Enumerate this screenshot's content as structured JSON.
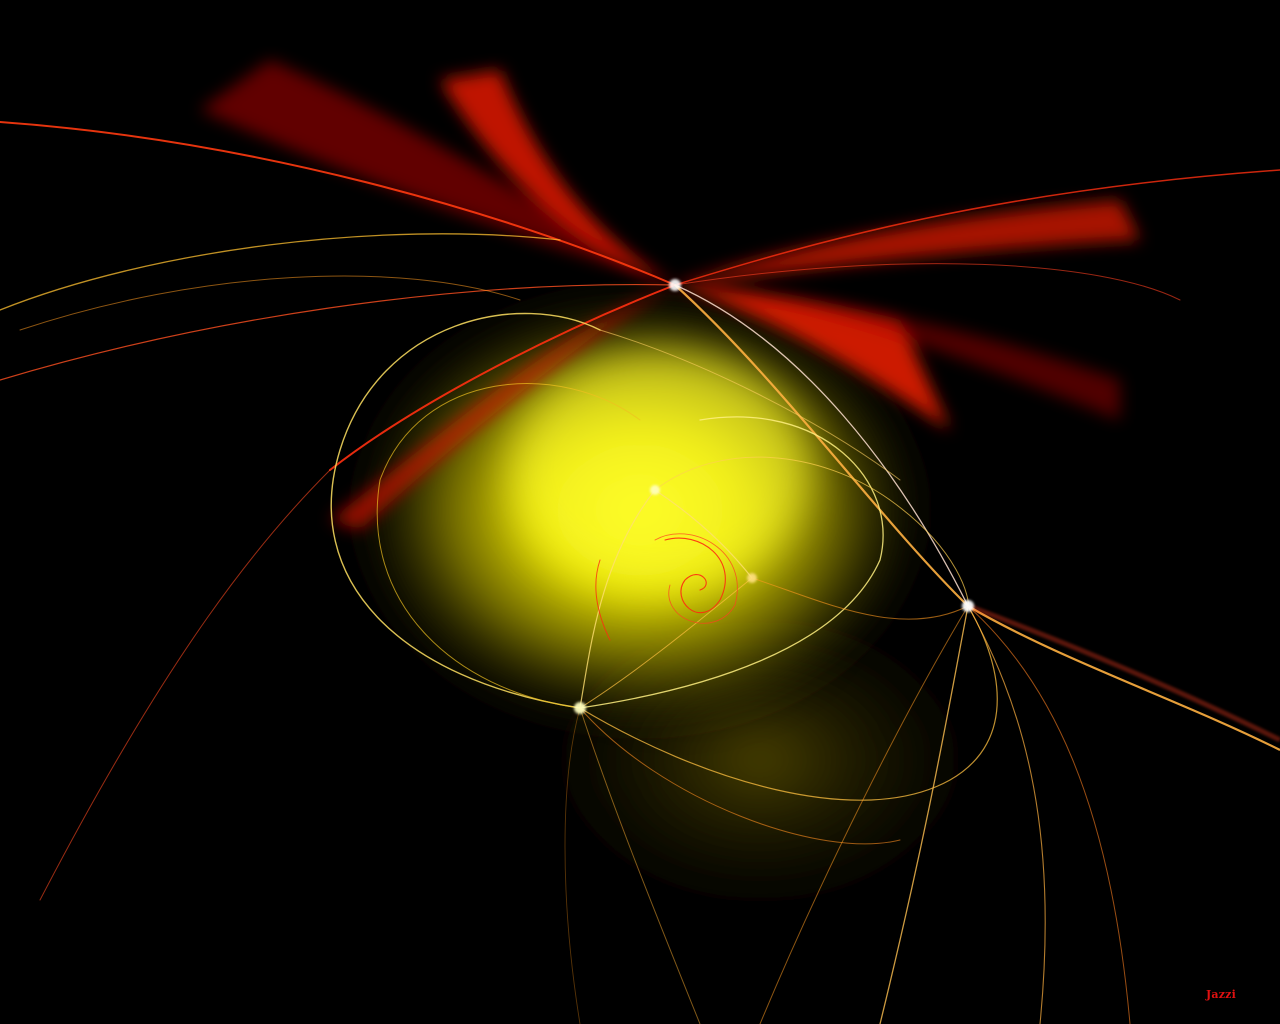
{
  "artwork": {
    "description_name": "fractal-flame",
    "background_color": "#000000",
    "glow_color": "#f2ee00",
    "primary_color": "#ff1a00",
    "accent_color": "#ffb000",
    "highlight_color": "#fff3a0"
  },
  "signature": {
    "text": "Jazzi",
    "color": "#e01010"
  }
}
